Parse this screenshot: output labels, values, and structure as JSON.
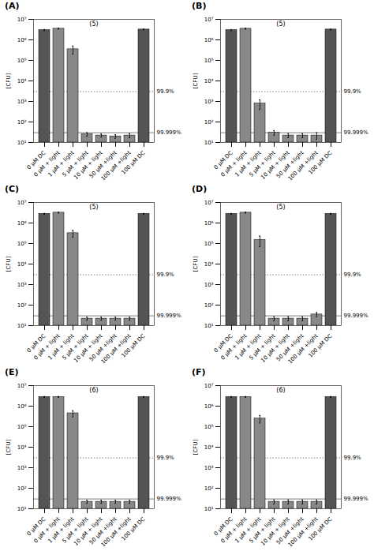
{
  "chart_data": [
    {
      "type": "bar",
      "title": "(A)",
      "annotations": [
        "(5)"
      ],
      "ylabel": "[CFU]",
      "categories": [
        "0 μM DC",
        "0 μM + light",
        "1 μM + light",
        "5 μM + light",
        "10 μM + light",
        "50 μM +light",
        "100 μM +light",
        "100 μM DC"
      ],
      "values": [
        3000000,
        3500000,
        350000,
        25,
        22,
        20,
        22,
        3200000
      ],
      "error_low": [
        200000,
        200000,
        150000,
        5,
        4,
        4,
        5,
        150000
      ],
      "error_high": [
        200000,
        200000,
        150000,
        5,
        4,
        4,
        5,
        150000
      ],
      "colors": [
        "#555555",
        "#888888",
        "#888888",
        "#888888",
        "#888888",
        "#888888",
        "#888888",
        "#555555"
      ],
      "log": "y",
      "grid": false,
      "ylim": [
        10,
        10000000
      ],
      "yticks": [
        {
          "value": 10,
          "label": "10¹"
        },
        {
          "value": 100,
          "label": "10²"
        },
        {
          "value": 1000,
          "label": "10³"
        },
        {
          "value": 10000,
          "label": "10⁴"
        },
        {
          "value": 100000,
          "label": "10⁵"
        },
        {
          "value": 1000000,
          "label": "10⁶"
        },
        {
          "value": 10000000,
          "label": "10⁷"
        }
      ],
      "reference_lines": [
        {
          "y": 3000,
          "label": "99.9%",
          "line_style": "dotted"
        },
        {
          "y": 30,
          "label": "99.999%",
          "line_style": "solid"
        }
      ]
    },
    {
      "type": "bar",
      "title": "(B)",
      "annotations": [
        "(5)"
      ],
      "ylabel": "[CFU]",
      "categories": [
        "0 μM DC",
        "0 μM + light",
        "1 μM + light",
        "5 μM + light",
        "10 μM + light",
        "50 μM +light",
        "100 μM +light",
        "100 μM DC"
      ],
      "values": [
        3000000,
        3500000,
        800,
        30,
        22,
        22,
        22,
        3200000
      ],
      "error_low": [
        200000,
        200000,
        400,
        8,
        5,
        5,
        8,
        150000
      ],
      "error_high": [
        200000,
        200000,
        400,
        8,
        5,
        5,
        8,
        150000
      ],
      "colors": [
        "#555555",
        "#888888",
        "#888888",
        "#888888",
        "#888888",
        "#888888",
        "#888888",
        "#555555"
      ],
      "log": "y",
      "grid": false,
      "ylim": [
        10,
        10000000
      ],
      "yticks": [
        {
          "value": 10,
          "label": "10¹"
        },
        {
          "value": 100,
          "label": "10²"
        },
        {
          "value": 1000,
          "label": "10³"
        },
        {
          "value": 10000,
          "label": "10⁴"
        },
        {
          "value": 100000,
          "label": "10⁵"
        },
        {
          "value": 1000000,
          "label": "10⁶"
        },
        {
          "value": 10000000,
          "label": "10⁷"
        }
      ],
      "reference_lines": [
        {
          "y": 3000,
          "label": "99.9%",
          "line_style": "dotted"
        },
        {
          "y": 30,
          "label": "99.999%",
          "line_style": "solid"
        }
      ]
    },
    {
      "type": "bar",
      "title": "(C)",
      "annotations": [
        "(5)"
      ],
      "ylabel": "[CFU]",
      "categories": [
        "0 μM DC",
        "0 μM + light",
        "1 μM + light",
        "5 μM + light",
        "10 μM + light",
        "50 μM +light",
        "100 μM +light",
        "100 μM DC"
      ],
      "values": [
        2800000,
        3200000,
        320000,
        22,
        22,
        22,
        22,
        2800000
      ],
      "error_low": [
        150000,
        200000,
        120000,
        4,
        4,
        4,
        4,
        150000
      ],
      "error_high": [
        150000,
        200000,
        120000,
        4,
        4,
        4,
        4,
        150000
      ],
      "colors": [
        "#555555",
        "#888888",
        "#888888",
        "#888888",
        "#888888",
        "#888888",
        "#888888",
        "#555555"
      ],
      "log": "y",
      "grid": false,
      "ylim": [
        10,
        10000000
      ],
      "yticks": [
        {
          "value": 10,
          "label": "10¹"
        },
        {
          "value": 100,
          "label": "10²"
        },
        {
          "value": 1000,
          "label": "10³"
        },
        {
          "value": 10000,
          "label": "10⁴"
        },
        {
          "value": 100000,
          "label": "10⁵"
        },
        {
          "value": 1000000,
          "label": "10⁶"
        },
        {
          "value": 10000000,
          "label": "10⁷"
        }
      ],
      "reference_lines": [
        {
          "y": 3000,
          "label": "99.9%",
          "line_style": "dotted"
        },
        {
          "y": 30,
          "label": "99.999%",
          "line_style": "solid"
        }
      ]
    },
    {
      "type": "bar",
      "title": "(D)",
      "annotations": [
        "(5)"
      ],
      "ylabel": "[CFU]",
      "categories": [
        "0 μM DC",
        "0 μM + light",
        "1 μM + light",
        "5 μM + light",
        "10 μM + light",
        "50 μM +light",
        "100 μM +light",
        "100 μM DC"
      ],
      "values": [
        2800000,
        3200000,
        150000,
        22,
        22,
        22,
        35,
        2800000
      ],
      "error_low": [
        150000,
        200000,
        80000,
        5,
        5,
        5,
        8,
        150000
      ],
      "error_high": [
        150000,
        200000,
        80000,
        5,
        5,
        5,
        8,
        150000
      ],
      "colors": [
        "#555555",
        "#888888",
        "#888888",
        "#888888",
        "#888888",
        "#888888",
        "#888888",
        "#555555"
      ],
      "log": "y",
      "grid": false,
      "ylim": [
        10,
        10000000
      ],
      "yticks": [
        {
          "value": 10,
          "label": "10¹"
        },
        {
          "value": 100,
          "label": "10²"
        },
        {
          "value": 1000,
          "label": "10³"
        },
        {
          "value": 10000,
          "label": "10⁴"
        },
        {
          "value": 100000,
          "label": "10⁵"
        },
        {
          "value": 1000000,
          "label": "10⁶"
        },
        {
          "value": 10000000,
          "label": "10⁷"
        }
      ],
      "reference_lines": [
        {
          "y": 3000,
          "label": "99.9%",
          "line_style": "dotted"
        },
        {
          "y": 30,
          "label": "99.999%",
          "line_style": "solid"
        }
      ]
    },
    {
      "type": "bar",
      "title": "(E)",
      "annotations": [
        "(6)"
      ],
      "ylabel": "[CFU]",
      "categories": [
        "0 μM DC",
        "0 μM + light",
        "1 μM + light",
        "5 μM + light",
        "10 μM + light",
        "50 μM +light",
        "100 μM +light",
        "100 μM DC"
      ],
      "values": [
        2800000,
        2800000,
        450000,
        22,
        22,
        22,
        22,
        2800000
      ],
      "error_low": [
        150000,
        150000,
        150000,
        4,
        4,
        4,
        4,
        150000
      ],
      "error_high": [
        150000,
        150000,
        150000,
        4,
        4,
        4,
        4,
        150000
      ],
      "colors": [
        "#555555",
        "#888888",
        "#888888",
        "#888888",
        "#888888",
        "#888888",
        "#888888",
        "#555555"
      ],
      "log": "y",
      "grid": false,
      "ylim": [
        10,
        10000000
      ],
      "yticks": [
        {
          "value": 10,
          "label": "10¹"
        },
        {
          "value": 100,
          "label": "10²"
        },
        {
          "value": 1000,
          "label": "10³"
        },
        {
          "value": 10000,
          "label": "10⁴"
        },
        {
          "value": 100000,
          "label": "10⁵"
        },
        {
          "value": 1000000,
          "label": "10⁶"
        },
        {
          "value": 10000000,
          "label": "10⁷"
        }
      ],
      "reference_lines": [
        {
          "y": 3000,
          "label": "99.9%",
          "line_style": "dotted"
        },
        {
          "y": 30,
          "label": "99.999%",
          "line_style": "solid"
        }
      ]
    },
    {
      "type": "bar",
      "title": "(F)",
      "annotations": [
        "(6)"
      ],
      "ylabel": "[CFU]",
      "categories": [
        "0 μM DC",
        "0 μM + light",
        "1 μM + light",
        "5 μM + light",
        "10 μM + light",
        "50 μM +light",
        "100 μM +light",
        "100 μM DC"
      ],
      "values": [
        2800000,
        2800000,
        250000,
        22,
        22,
        22,
        22,
        2800000
      ],
      "error_low": [
        150000,
        150000,
        100000,
        5,
        5,
        5,
        5,
        150000
      ],
      "error_high": [
        150000,
        150000,
        100000,
        5,
        5,
        5,
        5,
        150000
      ],
      "colors": [
        "#555555",
        "#888888",
        "#888888",
        "#888888",
        "#888888",
        "#888888",
        "#888888",
        "#555555"
      ],
      "log": "y",
      "grid": false,
      "ylim": [
        10,
        10000000
      ],
      "yticks": [
        {
          "value": 10,
          "label": "10¹"
        },
        {
          "value": 100,
          "label": "10²"
        },
        {
          "value": 1000,
          "label": "10³"
        },
        {
          "value": 10000,
          "label": "10⁴"
        },
        {
          "value": 100000,
          "label": "10⁵"
        },
        {
          "value": 1000000,
          "label": "10⁶"
        },
        {
          "value": 10000000,
          "label": "10⁷"
        }
      ],
      "reference_lines": [
        {
          "y": 3000,
          "label": "99.9%",
          "line_style": "dotted"
        },
        {
          "y": 30,
          "label": "99.999%",
          "line_style": "solid"
        }
      ]
    }
  ]
}
